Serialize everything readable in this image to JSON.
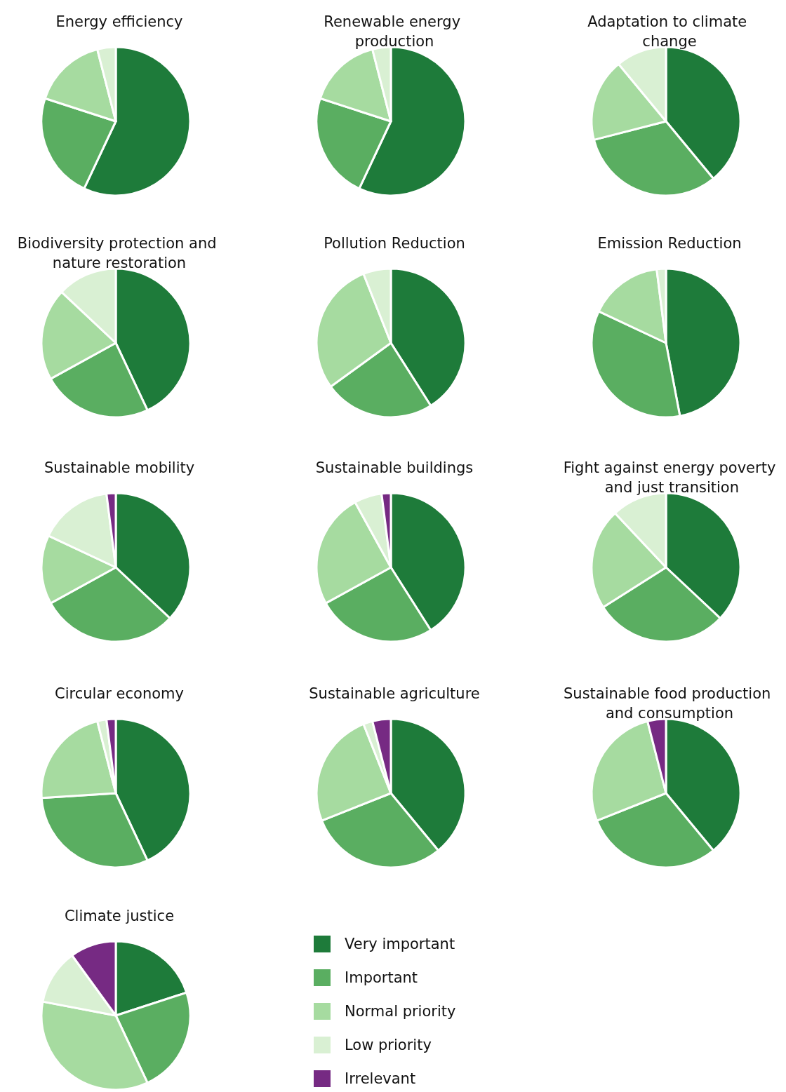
{
  "chart_data": [
    {
      "type": "pie",
      "title": "Energy efficiency",
      "categories": [
        null,
        null,
        null,
        null
      ],
      "values": [
        57,
        23,
        16,
        4
      ],
      "colors": [
        "#1e7b3a",
        "#5aae61",
        "#a6dba0",
        "#d9f0d3"
      ]
    },
    {
      "type": "pie",
      "title": "Renewable energy production",
      "categories": [
        null,
        null,
        null,
        null
      ],
      "values": [
        57,
        23,
        16,
        4
      ],
      "colors": [
        "#1e7b3a",
        "#5aae61",
        "#a6dba0",
        "#d9f0d3"
      ]
    },
    {
      "type": "pie",
      "title": "Adaptation to climate change",
      "categories": [
        null,
        null,
        null,
        null
      ],
      "values": [
        39,
        32,
        18,
        11
      ],
      "colors": [
        "#1e7b3a",
        "#5aae61",
        "#a6dba0",
        "#d9f0d3"
      ]
    },
    {
      "type": "pie",
      "title": "Biodiversity protection and nature restoration",
      "categories": [
        null,
        null,
        null,
        null
      ],
      "values": [
        43,
        24,
        20,
        13
      ],
      "colors": [
        "#1e7b3a",
        "#5aae61",
        "#a6dba0",
        "#d9f0d3"
      ]
    },
    {
      "type": "pie",
      "title": "Pollution Reduction",
      "categories": [
        null,
        null,
        null,
        null
      ],
      "values": [
        41,
        24,
        29,
        6
      ],
      "colors": [
        "#1e7b3a",
        "#5aae61",
        "#a6dba0",
        "#d9f0d3"
      ]
    },
    {
      "type": "pie",
      "title": "Emission Reduction",
      "categories": [
        null,
        null,
        null,
        null
      ],
      "values": [
        47,
        35,
        16,
        2
      ],
      "colors": [
        "#1e7b3a",
        "#5aae61",
        "#a6dba0",
        "#d9f0d3"
      ]
    },
    {
      "type": "pie",
      "title": "Sustainable mobility",
      "categories": [
        null,
        null,
        null,
        null,
        null
      ],
      "values": [
        37,
        30,
        15,
        16,
        2
      ],
      "colors": [
        "#1e7b3a",
        "#5aae61",
        "#a6dba0",
        "#d9f0d3",
        "#762a83"
      ]
    },
    {
      "type": "pie",
      "title": "Sustainable buildings",
      "categories": [
        null,
        null,
        null,
        null,
        null
      ],
      "values": [
        41,
        26,
        25,
        6,
        2
      ],
      "colors": [
        "#1e7b3a",
        "#5aae61",
        "#a6dba0",
        "#d9f0d3",
        "#762a83"
      ]
    },
    {
      "type": "pie",
      "title": "Fight against energy poverty and just transition",
      "categories": [
        null,
        null,
        null,
        null
      ],
      "values": [
        37,
        29,
        22,
        12
      ],
      "colors": [
        "#1e7b3a",
        "#5aae61",
        "#a6dba0",
        "#d9f0d3"
      ]
    },
    {
      "type": "pie",
      "title": "Circular economy",
      "categories": [
        null,
        null,
        null,
        null,
        null
      ],
      "values": [
        43,
        31,
        22,
        2,
        2
      ],
      "colors": [
        "#1e7b3a",
        "#5aae61",
        "#a6dba0",
        "#d9f0d3",
        "#762a83"
      ]
    },
    {
      "type": "pie",
      "title": "Sustainable agriculture",
      "categories": [
        null,
        null,
        null,
        null,
        null
      ],
      "values": [
        39,
        30,
        25,
        2,
        4
      ],
      "colors": [
        "#1e7b3a",
        "#5aae61",
        "#a6dba0",
        "#d9f0d3",
        "#762a83"
      ]
    },
    {
      "type": "pie",
      "title": "Sustainable food production and consumption",
      "categories": [
        null,
        null,
        null,
        null
      ],
      "values": [
        39,
        30,
        27,
        4
      ],
      "colors": [
        "#1e7b3a",
        "#5aae61",
        "#a6dba0",
        "#762a83"
      ]
    },
    {
      "type": "pie",
      "title": "Climate justice",
      "categories": [
        "Very important",
        "Important",
        "Normal priority",
        "Low priority",
        "Irrelevant"
      ],
      "values": [
        20,
        23,
        35,
        12,
        10
      ],
      "colors": [
        "#1e7b3a",
        "#5aae61",
        "#a6dba0",
        "#d9f0d3",
        "#762a83"
      ],
      "legend": "right"
    }
  ]
}
